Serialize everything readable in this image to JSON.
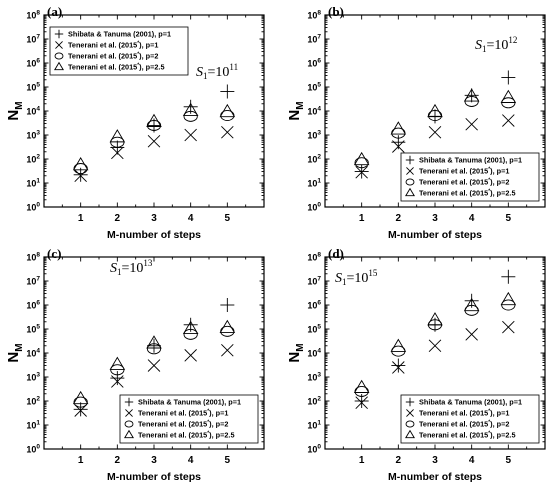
{
  "chart_data": [
    {
      "type": "scatter",
      "panel_label": "(a)",
      "s1_label": {
        "prefix": "S",
        "sub": "1",
        "eq": "=10",
        "exp": "11"
      },
      "xlabel": "M-number of steps",
      "ylabel": {
        "main": "N",
        "sub": "M"
      },
      "categories": [
        1,
        2,
        3,
        4,
        5
      ],
      "y_scale": "log",
      "ylim": [
        1,
        100000000
      ],
      "legend_position": "top-left",
      "series": [
        {
          "name": "Shibata & Tanuma (2001), p=1",
          "marker": "plus",
          "values": [
            22,
            300,
            2500,
            15000,
            65000
          ]
        },
        {
          "name": "Tenerani et al. (2015*), p=1",
          "marker": "x",
          "values": [
            20,
            180,
            550,
            1000,
            1300
          ]
        },
        {
          "name": "Tenerani et al. (2015*), p=2",
          "marker": "circle",
          "values": [
            40,
            500,
            2500,
            6000,
            6500
          ]
        },
        {
          "name": "Tenerani et al. (2015*), p=2.5",
          "marker": "triangle",
          "values": [
            55,
            800,
            3500,
            10000,
            9000
          ]
        }
      ]
    },
    {
      "type": "scatter",
      "panel_label": "(b)",
      "s1_label": {
        "prefix": "S",
        "sub": "1",
        "eq": "=10",
        "exp": "12"
      },
      "xlabel": "M-number of steps",
      "ylabel": {
        "main": "N",
        "sub": "M"
      },
      "categories": [
        1,
        2,
        3,
        4,
        5
      ],
      "y_scale": "log",
      "ylim": [
        1,
        100000000
      ],
      "legend_position": "bottom-right",
      "series": [
        {
          "name": "Shibata & Tanuma (2001), p=1",
          "marker": "plus",
          "values": [
            30,
            500,
            6000,
            45000,
            250000
          ]
        },
        {
          "name": "Tenerani et al. (2015*), p=1",
          "marker": "x",
          "values": [
            28,
            330,
            1300,
            2800,
            4000
          ]
        },
        {
          "name": "Tenerani et al. (2015*), p=2",
          "marker": "circle",
          "values": [
            70,
            1200,
            6500,
            25000,
            22000
          ]
        },
        {
          "name": "Tenerani et al. (2015*), p=2.5",
          "marker": "triangle",
          "values": [
            90,
            1700,
            9000,
            40000,
            35000
          ]
        }
      ]
    },
    {
      "type": "scatter",
      "panel_label": "(c)",
      "s1_label": {
        "prefix": "S",
        "sub": "1",
        "eq": "=10",
        "exp": "13"
      },
      "xlabel": "M-number of steps",
      "ylabel": {
        "main": "N",
        "sub": "M"
      },
      "categories": [
        1,
        2,
        3,
        4,
        5
      ],
      "y_scale": "log",
      "ylim": [
        1,
        100000000
      ],
      "legend_position": "bottom-right",
      "series": [
        {
          "name": "Shibata & Tanuma (2001), p=1",
          "marker": "plus",
          "values": [
            45,
            900,
            20000,
            150000,
            1000000
          ]
        },
        {
          "name": "Tenerani et al. (2015*), p=1",
          "marker": "x",
          "values": [
            40,
            650,
            3000,
            8000,
            13000
          ]
        },
        {
          "name": "Tenerani et al. (2015*), p=2",
          "marker": "circle",
          "values": [
            90,
            2000,
            15000,
            60000,
            80000
          ]
        },
        {
          "name": "Tenerani et al. (2015*), p=2.5",
          "marker": "triangle",
          "values": [
            120,
            3200,
            25000,
            100000,
            110000
          ]
        }
      ]
    },
    {
      "type": "scatter",
      "panel_label": "(d)",
      "s1_label": {
        "prefix": "S",
        "sub": "1",
        "eq": "=10",
        "exp": "15"
      },
      "xlabel": "M-number of steps",
      "ylabel": {
        "main": "N",
        "sub": "M"
      },
      "categories": [
        1,
        2,
        3,
        4,
        5
      ],
      "y_scale": "log",
      "ylim": [
        1,
        100000000
      ],
      "legend_position": "bottom-right",
      "series": [
        {
          "name": "Shibata & Tanuma (2001), p=1",
          "marker": "plus",
          "values": [
            100,
            3000,
            150000,
            1500000,
            15000000
          ]
        },
        {
          "name": "Tenerani et al. (2015*), p=1",
          "marker": "x",
          "values": [
            85,
            2500,
            20000,
            60000,
            120000
          ]
        },
        {
          "name": "Tenerani et al. (2015*), p=2",
          "marker": "circle",
          "values": [
            250,
            12000,
            150000,
            600000,
            1000000
          ]
        },
        {
          "name": "Tenerani et al. (2015*), p=2.5",
          "marker": "triangle",
          "values": [
            350,
            18000,
            230000,
            900000,
            1600000
          ]
        }
      ]
    }
  ]
}
